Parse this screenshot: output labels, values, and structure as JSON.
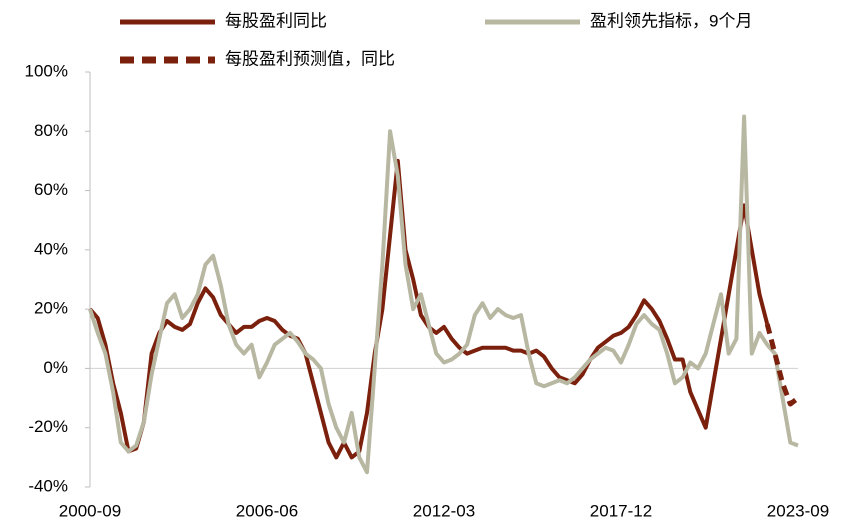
{
  "chart_data": {
    "type": "line",
    "categories": [
      "2000-09",
      null,
      null,
      null,
      null,
      null,
      null,
      null,
      null,
      null,
      null,
      null,
      null,
      null,
      null,
      null,
      null,
      null,
      null,
      null,
      null,
      null,
      null,
      "2006-06",
      null,
      null,
      null,
      null,
      null,
      null,
      null,
      null,
      null,
      null,
      null,
      null,
      null,
      null,
      null,
      null,
      null,
      null,
      null,
      null,
      null,
      null,
      "2012-03",
      null,
      null,
      null,
      null,
      null,
      null,
      null,
      null,
      null,
      null,
      null,
      null,
      null,
      null,
      null,
      null,
      null,
      null,
      null,
      null,
      null,
      null,
      "2017-12",
      null,
      null,
      null,
      null,
      null,
      null,
      null,
      null,
      null,
      null,
      null,
      null,
      null,
      null,
      null,
      null,
      null,
      null,
      null,
      null,
      null,
      null,
      "2023-09"
    ],
    "series": [
      {
        "name": "每股盈利同比",
        "color": "#7b200c",
        "style": "solid",
        "values": [
          20,
          17,
          8,
          -5,
          -15,
          -28,
          -27,
          -18,
          5,
          12,
          16,
          14,
          13,
          15,
          22,
          27,
          24,
          18,
          15,
          12,
          14,
          14,
          16,
          17,
          16,
          13,
          11,
          10,
          5,
          -5,
          -15,
          -25,
          -30,
          -25,
          -30,
          -28,
          -15,
          5,
          20,
          45,
          70,
          40,
          30,
          18,
          14,
          12,
          14,
          10,
          7,
          5,
          6,
          7,
          7,
          7,
          7,
          6,
          6,
          5,
          6,
          4,
          0,
          -3,
          -4,
          -5,
          -2,
          3,
          7,
          9,
          11,
          12,
          14,
          18,
          23,
          20,
          16,
          10,
          3,
          3,
          -8,
          -14,
          -20,
          -5,
          10,
          25,
          40,
          55,
          40,
          25,
          15,
          null,
          null,
          null,
          null
        ]
      },
      {
        "name": "盈利领先指标，9个月",
        "color": "#b8b7a2",
        "style": "solid",
        "values": [
          20,
          12,
          5,
          -8,
          -25,
          -28,
          -26,
          -18,
          -2,
          10,
          22,
          25,
          17,
          20,
          25,
          35,
          38,
          28,
          15,
          8,
          5,
          8,
          -3,
          2,
          8,
          10,
          12,
          9,
          5,
          3,
          0,
          -12,
          -20,
          -25,
          -15,
          -30,
          -35,
          0,
          35,
          80,
          65,
          35,
          20,
          25,
          15,
          5,
          2,
          3,
          5,
          8,
          18,
          22,
          17,
          20,
          18,
          17,
          18,
          5,
          -5,
          -6,
          -5,
          -4,
          -5,
          -3,
          0,
          3,
          5,
          7,
          6,
          2,
          8,
          15,
          18,
          15,
          13,
          5,
          -5,
          -3,
          2,
          0,
          5,
          15,
          25,
          5,
          10,
          85,
          5,
          12,
          8,
          5,
          -10,
          -25,
          -26
        ]
      },
      {
        "name": "每股盈利预测值，同比",
        "color": "#7b200c",
        "style": "dashed",
        "values": [
          null,
          null,
          null,
          null,
          null,
          null,
          null,
          null,
          null,
          null,
          null,
          null,
          null,
          null,
          null,
          null,
          null,
          null,
          null,
          null,
          null,
          null,
          null,
          null,
          null,
          null,
          null,
          null,
          null,
          null,
          null,
          null,
          null,
          null,
          null,
          null,
          null,
          null,
          null,
          null,
          null,
          null,
          null,
          null,
          null,
          null,
          null,
          null,
          null,
          null,
          null,
          null,
          null,
          null,
          null,
          null,
          null,
          null,
          null,
          null,
          null,
          null,
          null,
          null,
          null,
          null,
          null,
          null,
          null,
          null,
          null,
          null,
          null,
          null,
          null,
          null,
          null,
          null,
          null,
          null,
          null,
          null,
          null,
          null,
          null,
          null,
          null,
          null,
          15,
          5,
          -5,
          -12,
          -10
        ]
      }
    ],
    "ylim": [
      -40,
      100
    ],
    "yticks": [
      {
        "value": -40,
        "label": "-40%"
      },
      {
        "value": -20,
        "label": "-20%"
      },
      {
        "value": 0,
        "label": "0%"
      },
      {
        "value": 20,
        "label": "20%"
      },
      {
        "value": 40,
        "label": "40%"
      },
      {
        "value": 60,
        "label": "60%"
      },
      {
        "value": 80,
        "label": "80%"
      },
      {
        "value": 100,
        "label": "100%"
      }
    ]
  }
}
